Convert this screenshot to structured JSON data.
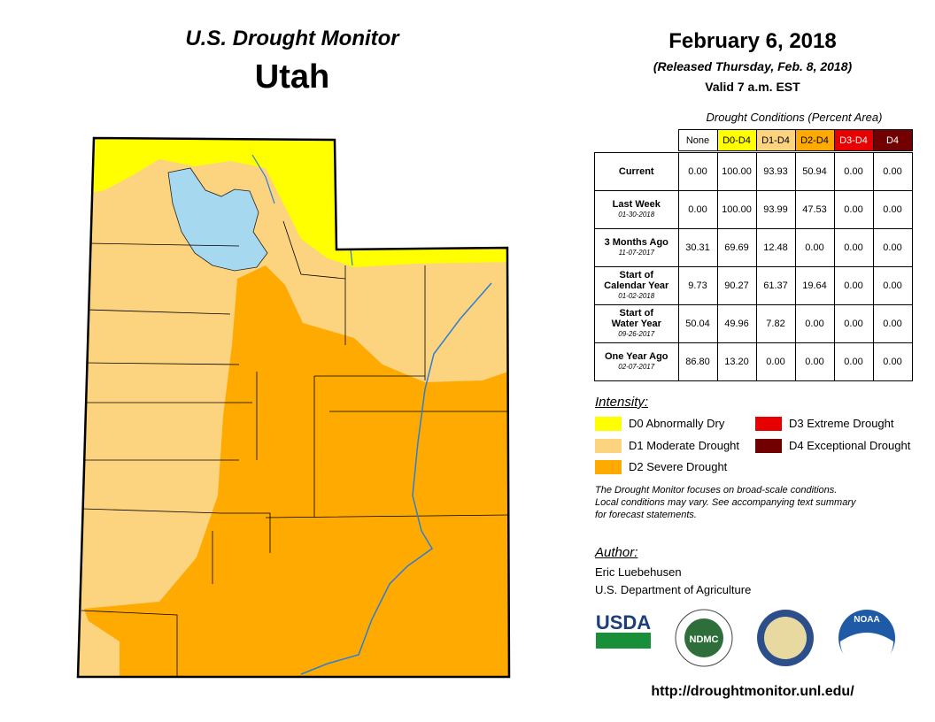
{
  "header": {
    "title": "U.S. Drought Monitor",
    "region": "Utah"
  },
  "release": {
    "date": "February 6, 2018",
    "released": "(Released Thursday, Feb. 8, 2018)",
    "valid": "Valid 7 a.m. EST"
  },
  "table": {
    "caption": "Drought Conditions (Percent Area)",
    "columns": [
      {
        "label": "None",
        "color": "#ffffff",
        "text": "#000000"
      },
      {
        "label": "D0-D4",
        "color": "#ffff00",
        "text": "#000000"
      },
      {
        "label": "D1-D4",
        "color": "#fcd37f",
        "text": "#000000"
      },
      {
        "label": "D2-D4",
        "color": "#ffaa00",
        "text": "#000000"
      },
      {
        "label": "D3-D4",
        "color": "#e60000",
        "text": "#ffffff"
      },
      {
        "label": "D4",
        "color": "#730000",
        "text": "#ffffff"
      }
    ],
    "rows": [
      {
        "label": [
          "Current"
        ],
        "values": [
          "0.00",
          "100.00",
          "93.93",
          "50.94",
          "0.00",
          "0.00"
        ]
      },
      {
        "label": [
          "Last Week"
        ],
        "date": "01-30-2018",
        "values": [
          "0.00",
          "100.00",
          "93.99",
          "47.53",
          "0.00",
          "0.00"
        ]
      },
      {
        "label": [
          "3 Months Ago"
        ],
        "date": "11-07-2017",
        "values": [
          "30.31",
          "69.69",
          "12.48",
          "0.00",
          "0.00",
          "0.00"
        ]
      },
      {
        "label": [
          "Start of",
          "Calendar Year"
        ],
        "date": "01-02-2018",
        "values": [
          "9.73",
          "90.27",
          "61.37",
          "19.64",
          "0.00",
          "0.00"
        ]
      },
      {
        "label": [
          "Start of",
          "Water Year"
        ],
        "date": "09-26-2017",
        "values": [
          "50.04",
          "49.96",
          "7.82",
          "0.00",
          "0.00",
          "0.00"
        ]
      },
      {
        "label": [
          "One Year Ago"
        ],
        "date": "02-07-2017",
        "values": [
          "86.80",
          "13.20",
          "0.00",
          "0.00",
          "0.00",
          "0.00"
        ]
      }
    ]
  },
  "legend": {
    "title": "Intensity:",
    "items": [
      {
        "label": "D0 Abnormally Dry",
        "color": "#ffff00"
      },
      {
        "label": "D1 Moderate Drought",
        "color": "#fcd37f"
      },
      {
        "label": "D2 Severe Drought",
        "color": "#ffaa00"
      },
      {
        "label": "D3 Extreme Drought",
        "color": "#e60000"
      },
      {
        "label": "D4 Exceptional Drought",
        "color": "#730000"
      }
    ]
  },
  "note": [
    "The Drought Monitor focuses on broad-scale conditions.",
    "Local conditions may vary. See accompanying text summary",
    "for forecast statements."
  ],
  "author": {
    "title": "Author:",
    "lines": [
      "Eric Luebehusen",
      "U.S. Department of Agriculture"
    ]
  },
  "logos": [
    "USDA",
    "NDMC",
    "NOAA"
  ],
  "url": "http://droughtmonitor.unl.edu/"
}
